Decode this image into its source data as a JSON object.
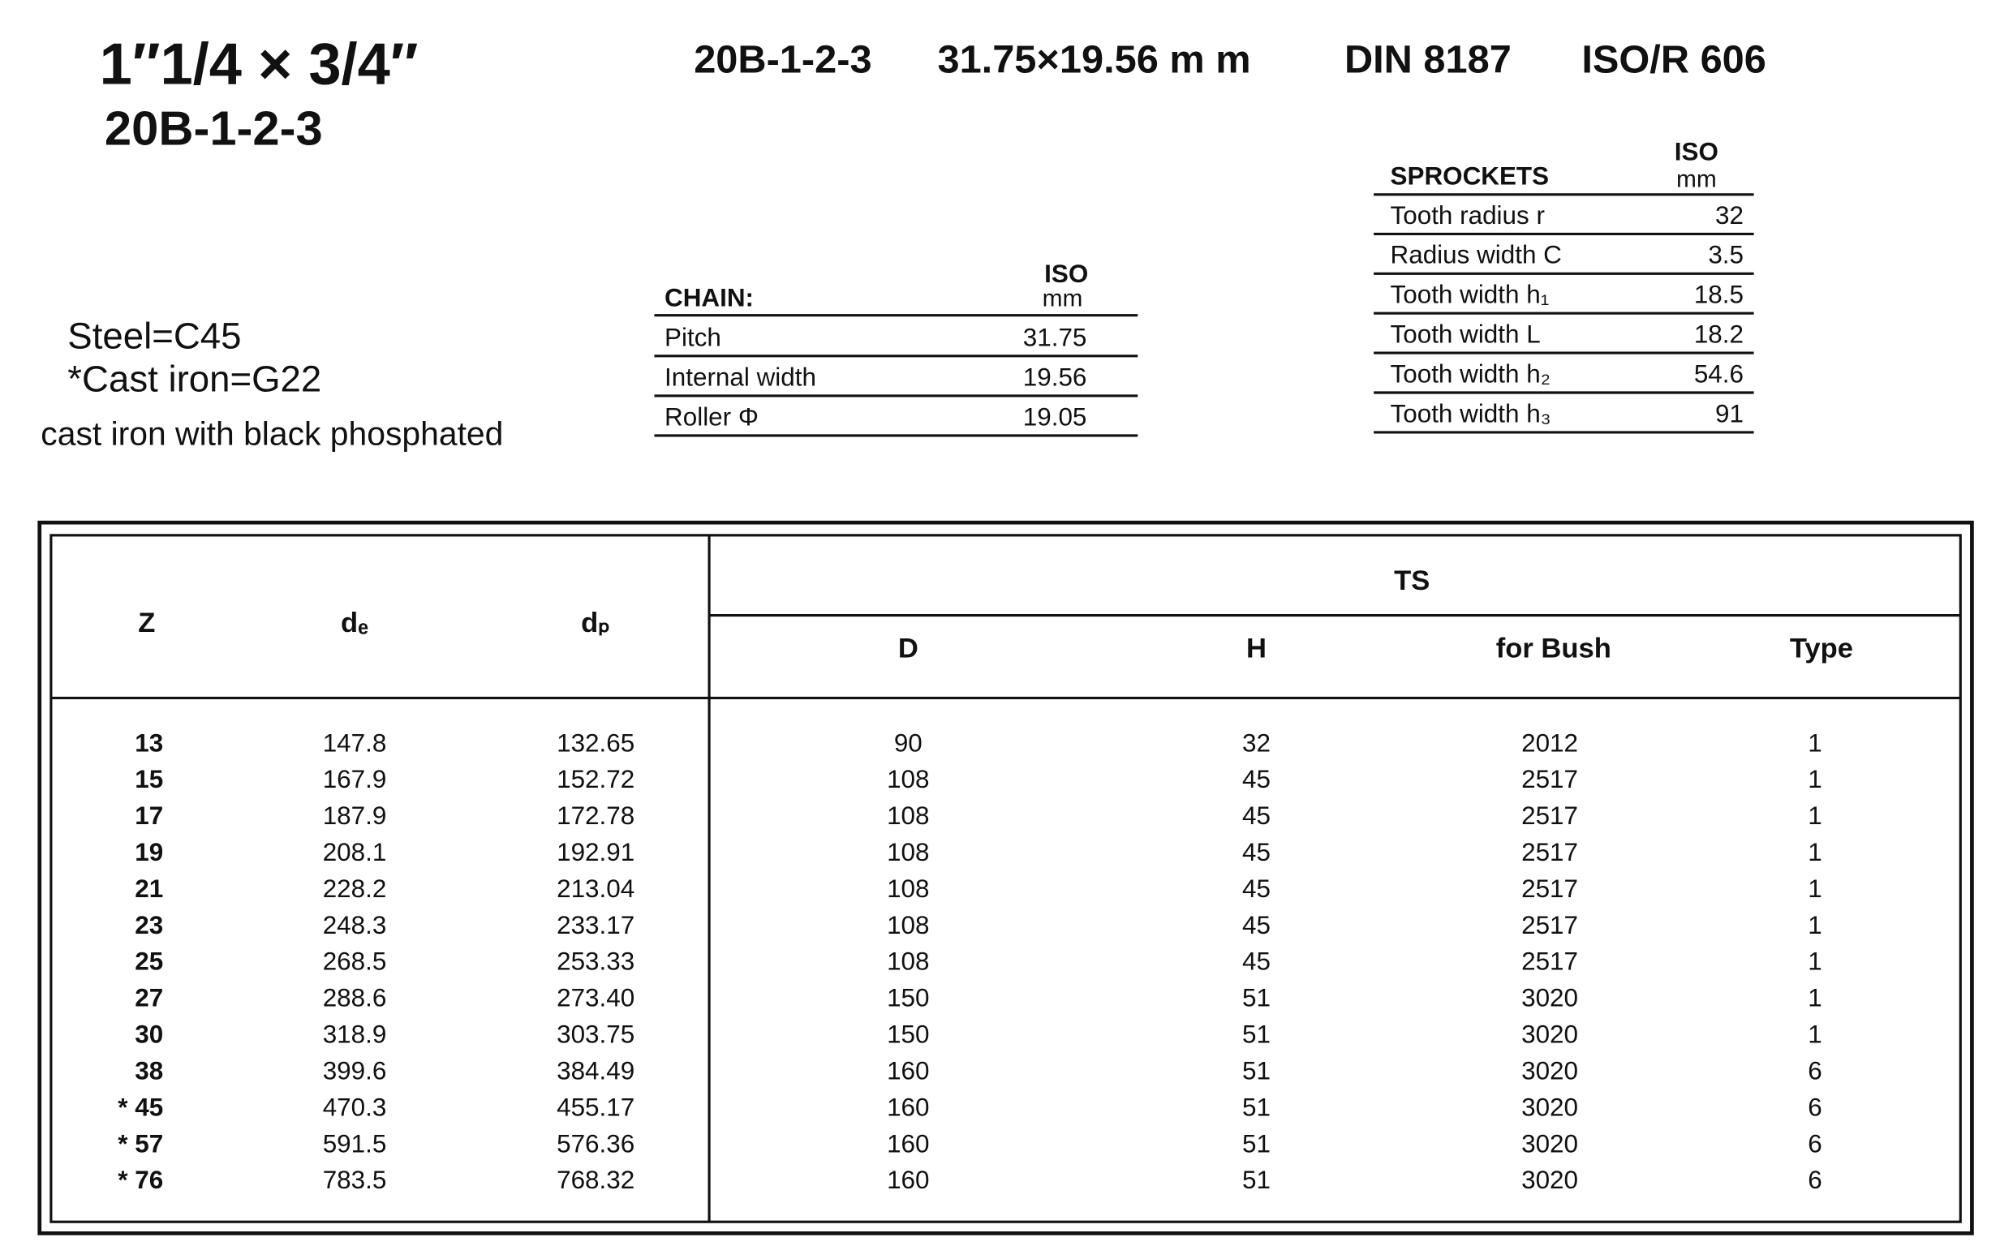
{
  "header": {
    "title": "1″1/4 × 3/4″",
    "subtitle": "20B-1-2-3",
    "spec": [
      "20B-1-2-3",
      "31.75×19.56 m m",
      "DIN  8187",
      "ISO/R 606"
    ]
  },
  "notes": [
    "Steel=C45",
    "*Cast iron=G22",
    "cast iron with black phosphated"
  ],
  "chain": {
    "title": "CHAIN:",
    "unit": [
      "ISO",
      "mm"
    ],
    "rows": [
      [
        "Pitch",
        "31.75"
      ],
      [
        "Internal width",
        "19.56"
      ],
      [
        "Roller Φ",
        "19.05"
      ]
    ]
  },
  "sprockets": {
    "title": "SPROCKETS",
    "unit": [
      "ISO",
      "mm"
    ],
    "rows": [
      [
        "Tooth radius r",
        "32"
      ],
      [
        "Radius width C",
        "3.5"
      ],
      [
        "Tooth width h₁",
        "18.5"
      ],
      [
        "Tooth width L",
        "18.2"
      ],
      [
        "Tooth width h₂",
        "54.6"
      ],
      [
        "Tooth width h₃",
        "91"
      ]
    ]
  },
  "table": {
    "group": "TS",
    "columns": [
      "Z",
      "dₑ",
      "dₚ",
      "D",
      "H",
      "for Bush",
      "Type"
    ],
    "rows": [
      [
        "13",
        "147.8",
        "132.65",
        "90",
        "32",
        "2012",
        "1"
      ],
      [
        "15",
        "167.9",
        "152.72",
        "108",
        "45",
        "2517",
        "1"
      ],
      [
        "17",
        "187.9",
        "172.78",
        "108",
        "45",
        "2517",
        "1"
      ],
      [
        "19",
        "208.1",
        "192.91",
        "108",
        "45",
        "2517",
        "1"
      ],
      [
        "21",
        "228.2",
        "213.04",
        "108",
        "45",
        "2517",
        "1"
      ],
      [
        "23",
        "248.3",
        "233.17",
        "108",
        "45",
        "2517",
        "1"
      ],
      [
        "25",
        "268.5",
        "253.33",
        "108",
        "45",
        "2517",
        "1"
      ],
      [
        "27",
        "288.6",
        "273.40",
        "150",
        "51",
        "3020",
        "1"
      ],
      [
        "30",
        "318.9",
        "303.75",
        "150",
        "51",
        "3020",
        "1"
      ],
      [
        "38",
        "399.6",
        "384.49",
        "160",
        "51",
        "3020",
        "6"
      ],
      [
        "* 45",
        "470.3",
        "455.17",
        "160",
        "51",
        "3020",
        "6"
      ],
      [
        "* 57",
        "591.5",
        "576.36",
        "160",
        "51",
        "3020",
        "6"
      ],
      [
        "* 76",
        "783.5",
        "768.32",
        "160",
        "51",
        "3020",
        "6"
      ]
    ]
  }
}
